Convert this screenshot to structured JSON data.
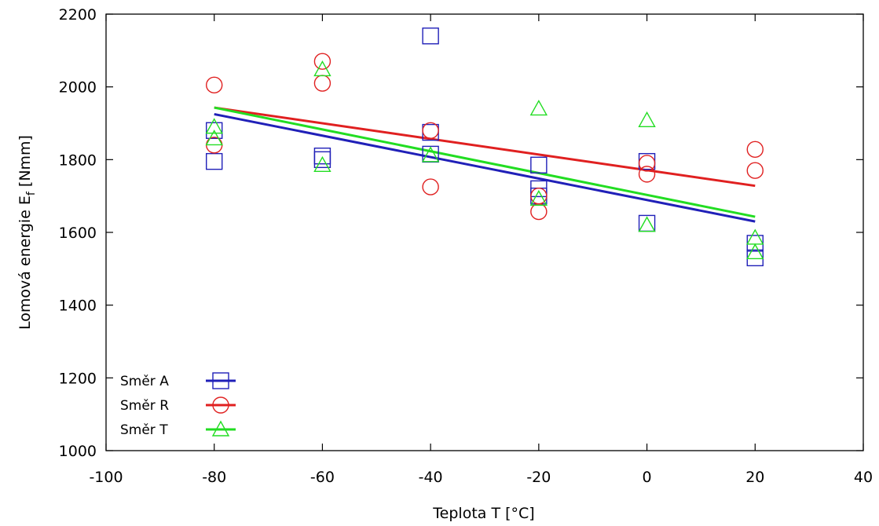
{
  "chart_data": {
    "type": "scatter",
    "xlabel": "Teplota T [°C]",
    "ylabel": {
      "prefix": "Lomová energie E",
      "subscript": "f",
      "suffix": " [Nmm]"
    },
    "xlim": [
      -100,
      40
    ],
    "ylim": [
      1000,
      2200
    ],
    "x_ticks": [
      -100,
      -80,
      -60,
      -40,
      -20,
      0,
      20,
      40
    ],
    "y_ticks": [
      1000,
      1200,
      1400,
      1600,
      1800,
      2000,
      2200
    ],
    "grid": false,
    "legend_position": "bottom-left",
    "series": [
      {
        "name": "Směr A",
        "marker": "square",
        "color": "#2020b8",
        "points": [
          [
            -80,
            1795
          ],
          [
            -80,
            1880
          ],
          [
            -60,
            1800
          ],
          [
            -60,
            1810
          ],
          [
            -40,
            2140
          ],
          [
            -40,
            1875
          ],
          [
            -40,
            1815
          ],
          [
            -20,
            1785
          ],
          [
            -20,
            1720
          ],
          [
            -20,
            1700
          ],
          [
            0,
            1795
          ],
          [
            0,
            1625
          ],
          [
            20,
            1530
          ],
          [
            20,
            1570
          ]
        ],
        "fit": {
          "x": [
            -80,
            20
          ],
          "y": [
            1925,
            1630
          ]
        }
      },
      {
        "name": "Směr R",
        "marker": "circle",
        "color": "#e02020",
        "points": [
          [
            -80,
            2005
          ],
          [
            -80,
            1840
          ],
          [
            -60,
            2070
          ],
          [
            -60,
            2010
          ],
          [
            -40,
            1880
          ],
          [
            -40,
            1725
          ],
          [
            -20,
            1700
          ],
          [
            -20,
            1657
          ],
          [
            0,
            1790
          ],
          [
            0,
            1760
          ],
          [
            20,
            1828
          ],
          [
            20,
            1770
          ]
        ],
        "fit": {
          "x": [
            -80,
            20
          ],
          "y": [
            1943,
            1728
          ]
        }
      },
      {
        "name": "Směr T",
        "marker": "triangle",
        "color": "#22dd22",
        "points": [
          [
            -80,
            1890
          ],
          [
            -80,
            1858
          ],
          [
            -60,
            2048
          ],
          [
            -60,
            1785
          ],
          [
            -40,
            1812
          ],
          [
            -20,
            1940
          ],
          [
            -20,
            1692
          ],
          [
            0,
            1908
          ],
          [
            0,
            1620
          ],
          [
            20,
            1585
          ],
          [
            20,
            1545
          ]
        ],
        "fit": {
          "x": [
            -80,
            20
          ],
          "y": [
            1943,
            1643
          ]
        }
      }
    ]
  }
}
